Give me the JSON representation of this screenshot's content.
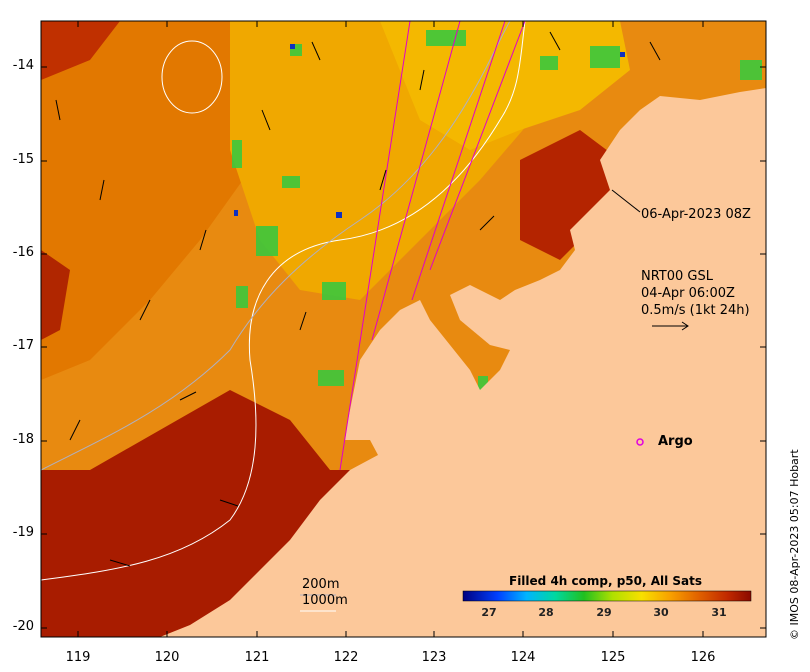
{
  "map": {
    "lat_ticks": [
      "-14",
      "-15",
      "-16",
      "-17",
      "-18",
      "-19",
      "-20"
    ],
    "lon_ticks": [
      "119",
      "120",
      "121",
      "122",
      "123",
      "124",
      "125",
      "126"
    ],
    "timestamp_label": "06-Apr-2023 08Z",
    "current_legend": {
      "line1": "NRT00 GSL",
      "line2": "04-Apr 06:00Z",
      "line3": "0.5m/s (1kt 24h)"
    },
    "argo_label": "Argo",
    "bathy_legend": {
      "contour_200": "200m",
      "contour_1000": "1000m"
    },
    "colorbar": {
      "title": "Filled 4h comp, p50, All Sats",
      "ticks": [
        "27",
        "28",
        "29",
        "30",
        "31"
      ]
    },
    "credit": "© IMOS 08-Apr-2023 05:07 Hobart",
    "colors": {
      "land": "#fcc89a",
      "sst_hot": "#9a1800",
      "sst_warm": "#e07400",
      "sst_mid": "#f6b400",
      "sst_cool": "#3cc83c",
      "argo": "#e000e0",
      "track": "#e000c8"
    }
  }
}
